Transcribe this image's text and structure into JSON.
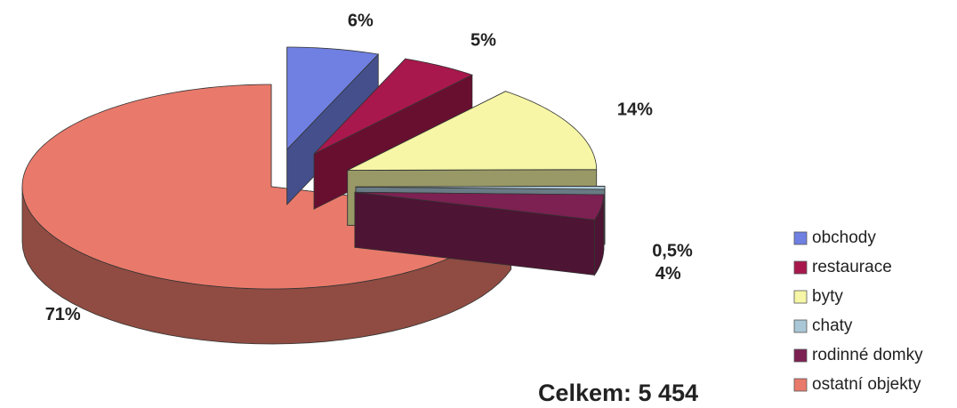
{
  "chart_data": {
    "type": "pie",
    "categories": [
      "obchody",
      "restaurace",
      "byty",
      "chaty",
      "rodinné domky",
      "ostatní objekty"
    ],
    "values": [
      6,
      5,
      14,
      0.5,
      4,
      71
    ],
    "value_labels": [
      "6%",
      "5%",
      "14%",
      "0,5%",
      "4%",
      "71%"
    ],
    "colors": [
      "#6f80e2",
      "#a8184c",
      "#f6f6a6",
      "#a9c7d6",
      "#7d2052",
      "#e97a6b"
    ],
    "annotation": "Celkem: 5 454",
    "legend": "right"
  }
}
